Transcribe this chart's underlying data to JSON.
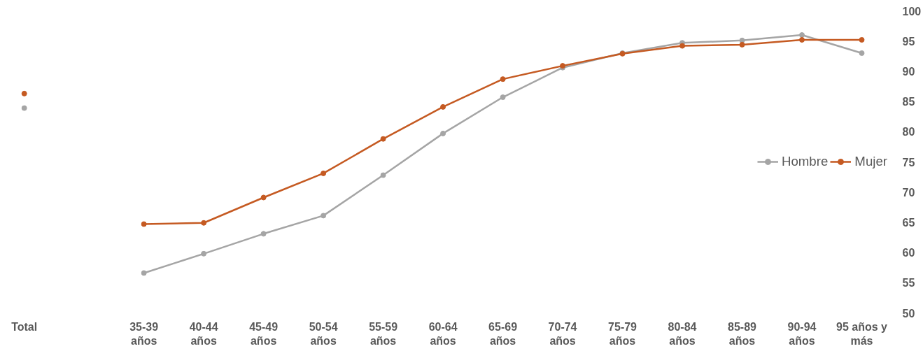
{
  "chart_data": {
    "type": "line",
    "categories": [
      "Total",
      null,
      "35-39 años",
      "40-44 años",
      "45-49 años",
      "50-54 años",
      "55-59 años",
      "60-64 años",
      "65-69 años",
      "70-74 años",
      "75-79 años",
      "80-84 años",
      "85-89 años",
      "90-94 años",
      "95 años y más"
    ],
    "series": [
      {
        "name": "Hombre",
        "color": "#a5a5a5",
        "values": [
          83.9,
          null,
          56.6,
          59.8,
          63.1,
          66.1,
          72.8,
          79.7,
          85.7,
          90.6,
          93.0,
          94.7,
          95.1,
          96.0,
          93.0
        ]
      },
      {
        "name": "Mujer",
        "color": "#c55a22",
        "values": [
          86.3,
          null,
          64.7,
          64.9,
          69.1,
          73.1,
          78.8,
          84.1,
          88.7,
          90.9,
          92.9,
          94.2,
          94.4,
          95.2,
          95.2
        ]
      }
    ],
    "ylim": [
      50,
      100
    ],
    "yticks": [
      50,
      55,
      60,
      65,
      70,
      75,
      80,
      85,
      90,
      95,
      100
    ],
    "grid": false,
    "legend": "right",
    "marker": "circle",
    "line_style": "solid"
  }
}
